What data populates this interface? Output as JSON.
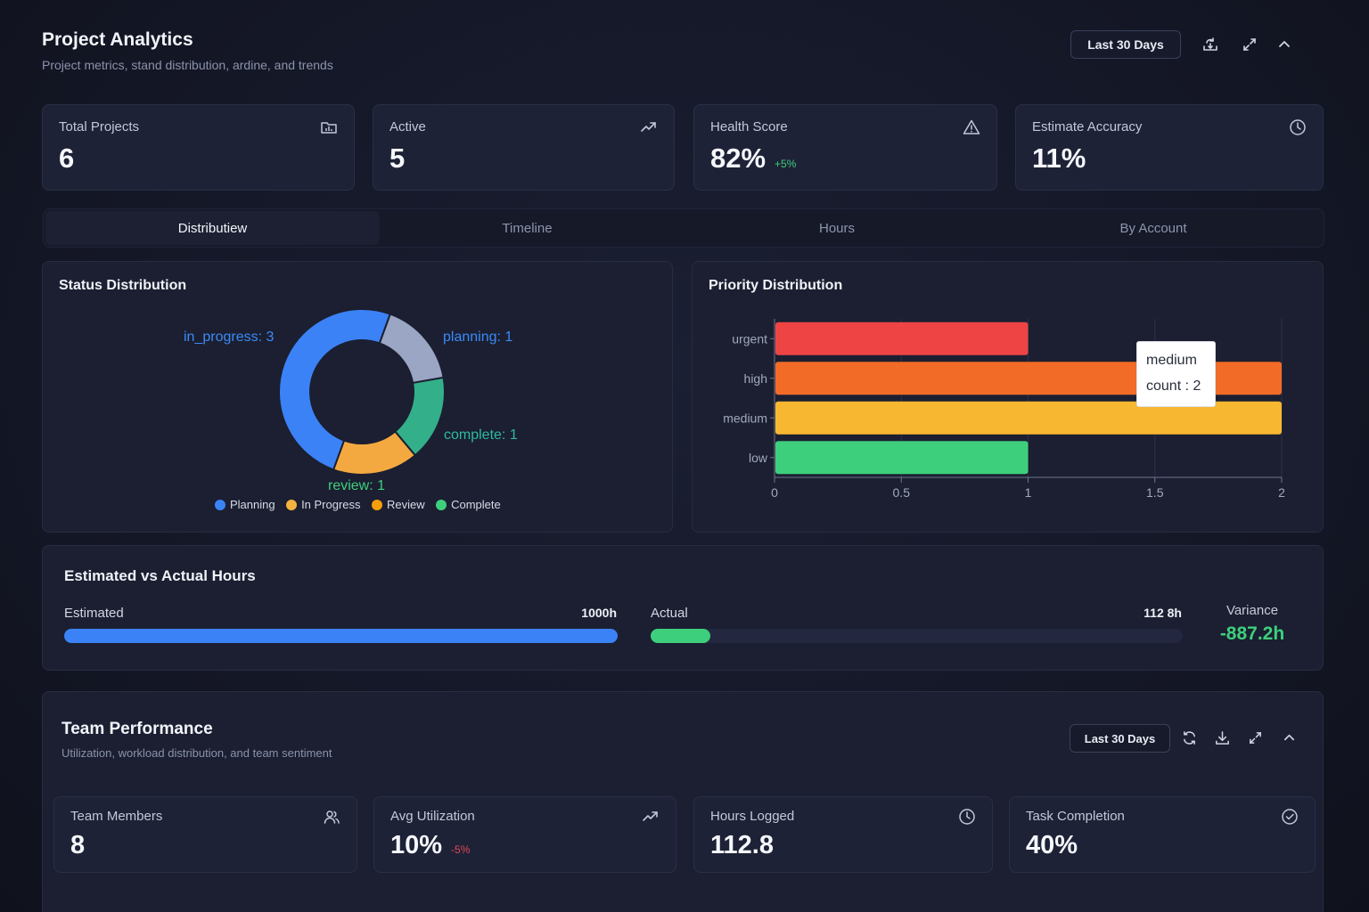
{
  "header": {
    "title": "Project Analytics",
    "subtitle": "Project metrics, stand distribution, ardine, and trends",
    "range_label": "Last 30 Days"
  },
  "stats": [
    {
      "label": "Total Projects",
      "value": "6",
      "delta": "",
      "icon": "folder-chart-icon"
    },
    {
      "label": "Active",
      "value": "5",
      "delta": "",
      "icon": "trending-up-icon"
    },
    {
      "label": "Health Score",
      "value": "82%",
      "delta": "+5%",
      "icon": "warning-icon"
    },
    {
      "label": "Estimate Accuracy",
      "value": "11%",
      "delta": "",
      "icon": "clock-icon"
    }
  ],
  "tabs": [
    {
      "label": "Distributiew",
      "active": true
    },
    {
      "label": "Timeline",
      "active": false
    },
    {
      "label": "Hours",
      "active": false
    },
    {
      "label": "By Account",
      "active": false
    }
  ],
  "status_panel": {
    "title": "Status Distribution",
    "slice_labels": {
      "in_progress": "in_progress: 3",
      "planning": "planning: 1",
      "complete": "complete: 1",
      "review": "review: 1"
    },
    "legend": [
      {
        "label": "Planning",
        "color": "#3b82f6"
      },
      {
        "label": "In Progress",
        "color": "#f6b23e"
      },
      {
        "label": "Review",
        "color": "#f59e0b"
      },
      {
        "label": "Complete",
        "color": "#3ecf7c"
      }
    ]
  },
  "priority_panel": {
    "title": "Priority Distribution",
    "tooltip": {
      "name": "medium",
      "line": "count : 2"
    }
  },
  "chart_data": [
    {
      "type": "pie",
      "title": "Status Distribution",
      "categories": [
        "in_progress",
        "planning",
        "complete",
        "review"
      ],
      "values": [
        3,
        1,
        1,
        1
      ],
      "colors": [
        "#3b82f6",
        "#9aa6c4",
        "#33b08a",
        "#f4a940"
      ],
      "donut": true,
      "legend": "bottom"
    },
    {
      "type": "bar",
      "orientation": "horizontal",
      "title": "Priority Distribution",
      "categories": [
        "urgent",
        "high",
        "medium",
        "low"
      ],
      "category_labels": [
        "urgent",
        "high",
        "medium",
        "low"
      ],
      "values": [
        1,
        2,
        2,
        1
      ],
      "colors": [
        "#ef4444",
        "#f26b27",
        "#f7b731",
        "#3ecf7c"
      ],
      "xlim": [
        0,
        2
      ],
      "xticks": [
        "0",
        "0.5",
        "1",
        "1.5",
        "2"
      ],
      "grid": true
    }
  ],
  "hours_panel": {
    "title": "Estimated vs Actual Hours",
    "estimated_label": "Estimated",
    "estimated_value": "1000h",
    "estimated_fraction": 1.0,
    "actual_label": "Actual",
    "actual_value": "112 8h",
    "actual_fraction": 0.1128,
    "variance_label": "Variance",
    "variance_value": "-887.2h",
    "colors": {
      "estimated": "#3b82f6",
      "actual": "#3ecf7c",
      "variance": "#3ecf7c"
    }
  },
  "team": {
    "title": "Team Performance",
    "subtitle": "Utilization, workload distribution, and team sentiment",
    "range_label": "Last 30 Days",
    "stats": [
      {
        "label": "Team Members",
        "value": "8",
        "delta": "",
        "icon": "users-icon"
      },
      {
        "label": "Avg Utilization",
        "value": "10%",
        "delta": "-5%",
        "icon": "trending-up-icon"
      },
      {
        "label": "Hours Logged",
        "value": "112.8",
        "delta": "",
        "icon": "clock-icon"
      },
      {
        "label": "Task Completion",
        "value": "40%",
        "delta": "",
        "icon": "check-circle-icon"
      }
    ]
  }
}
